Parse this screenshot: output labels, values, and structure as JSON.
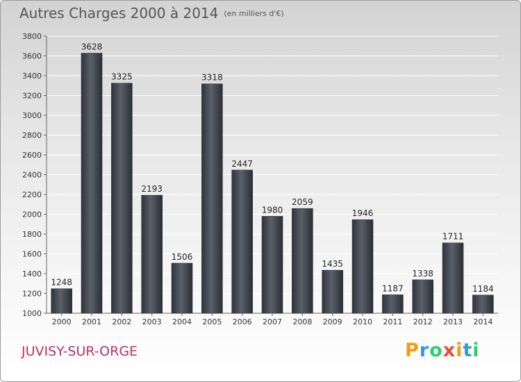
{
  "header": {
    "title": "Autres Charges 2000 à 2014",
    "unit": "(en milliers d'€)"
  },
  "footer": {
    "place": "JUVISY-SUR-ORGE",
    "logo_letters": [
      {
        "char": "P",
        "color": "#f39c12"
      },
      {
        "char": "r",
        "color": "#3498db"
      },
      {
        "char": "o",
        "color": "#2ecc71"
      },
      {
        "char": "x",
        "color": "#e74c3c"
      },
      {
        "char": "i",
        "color": "#f39c12"
      },
      {
        "char": "t",
        "color": "#3498db"
      },
      {
        "char": "i",
        "color": "#2ecc71"
      }
    ]
  },
  "chart_data": {
    "type": "bar",
    "categories": [
      "2000",
      "2001",
      "2002",
      "2003",
      "2004",
      "2005",
      "2006",
      "2007",
      "2008",
      "2009",
      "2010",
      "2011",
      "2012",
      "2013",
      "2014"
    ],
    "values": [
      1248,
      3628,
      3325,
      2193,
      1506,
      3318,
      2447,
      1980,
      2059,
      1435,
      1946,
      1187,
      1338,
      1711,
      1184
    ],
    "ylim": [
      1000,
      3800
    ],
    "yticks": [
      1000,
      1200,
      1400,
      1600,
      1800,
      2000,
      2200,
      2400,
      2600,
      2800,
      3000,
      3200,
      3400,
      3600,
      3800
    ],
    "grid": true,
    "data_labels": true,
    "bar_color": "#3d434b"
  }
}
